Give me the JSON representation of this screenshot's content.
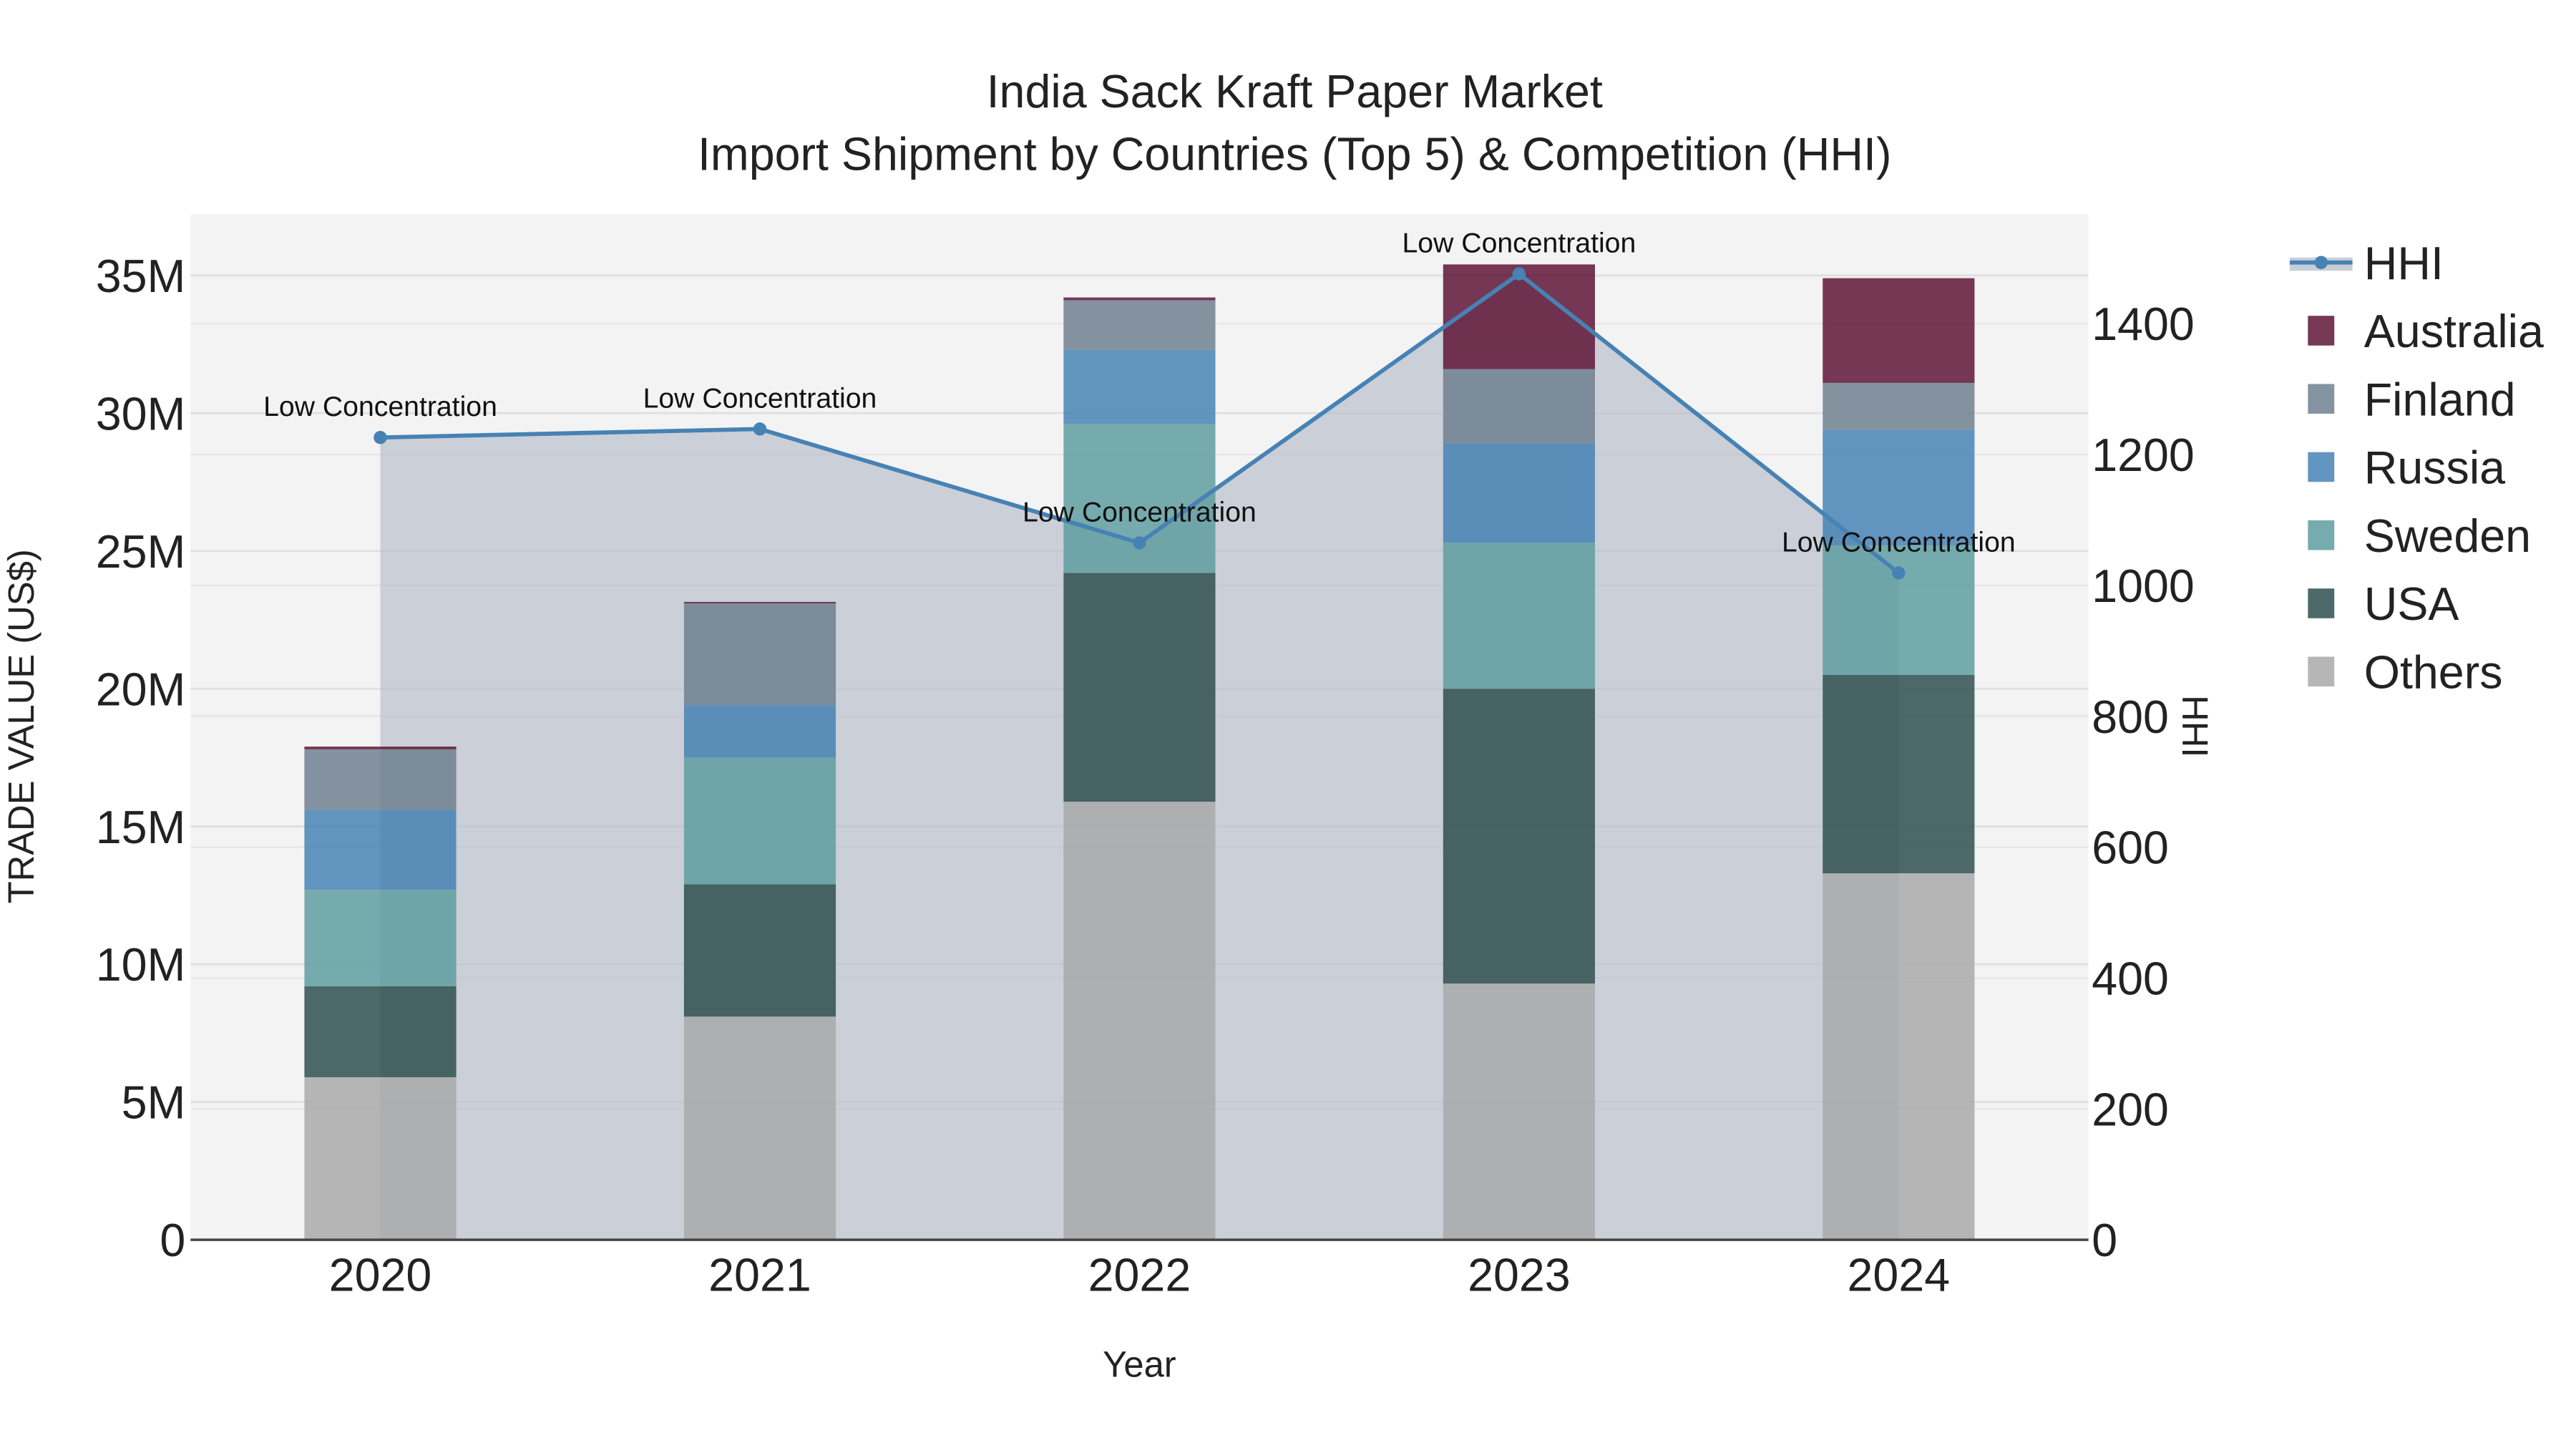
{
  "title_line1": "India Sack Kraft Paper Market",
  "title_line2": "Import Shipment by Countries (Top 5) & Competition (HHI)",
  "xaxis_label": "Year",
  "yaxis_label": "TRADE VALUE (US$)",
  "y2axis_label": "HHI",
  "y_ticks": [
    "0",
    "5M",
    "10M",
    "15M",
    "20M",
    "25M",
    "30M",
    "35M"
  ],
  "y2_ticks": [
    "0",
    "200",
    "400",
    "600",
    "800",
    "1000",
    "1200",
    "1400"
  ],
  "legend": [
    {
      "name": "HHI",
      "color": "#4682b4"
    },
    {
      "name": "Australia",
      "color": "#5e1536"
    },
    {
      "name": "Finland",
      "color": "#708090"
    },
    {
      "name": "Russia",
      "color": "#4682b4"
    },
    {
      "name": "Sweden",
      "color": "#5f9ea0"
    },
    {
      "name": "USA",
      "color": "#2f4f4f"
    },
    {
      "name": "Others",
      "color": "#a9a9a9"
    }
  ],
  "chart_data": {
    "type": "bar",
    "stacked": true,
    "title": "India Sack Kraft Paper Market — Import Shipment by Countries (Top 5) & Competition (HHI)",
    "xlabel": "Year",
    "ylabel": "TRADE VALUE (US$)",
    "y2label": "HHI",
    "ylim": [
      0,
      37000000
    ],
    "y2lim": [
      0,
      1560
    ],
    "categories": [
      "2020",
      "2021",
      "2022",
      "2023",
      "2024"
    ],
    "series": [
      {
        "name": "Others",
        "values": [
          5900000,
          8100000,
          15900000,
          9300000,
          13300000
        ]
      },
      {
        "name": "USA",
        "values": [
          3300000,
          4800000,
          8300000,
          10700000,
          7200000
        ]
      },
      {
        "name": "Sweden",
        "values": [
          3500000,
          4600000,
          5400000,
          5300000,
          4700000
        ]
      },
      {
        "name": "Russia",
        "values": [
          2900000,
          1900000,
          2700000,
          3600000,
          4200000
        ]
      },
      {
        "name": "Finland",
        "values": [
          2200000,
          3700000,
          1800000,
          2700000,
          1700000
        ]
      },
      {
        "name": "Australia",
        "values": [
          100000,
          50000,
          100000,
          3800000,
          3800000
        ]
      }
    ],
    "line_series": {
      "name": "HHI",
      "axis": "y2",
      "values": [
        1226,
        1239,
        1065,
        1476,
        1019
      ],
      "fill": "tozeroy"
    },
    "annotations": [
      "Low Concentration",
      "Low Concentration",
      "Low Concentration",
      "Low Concentration",
      "Low Concentration"
    ],
    "legend_position": "right",
    "grid": true
  }
}
